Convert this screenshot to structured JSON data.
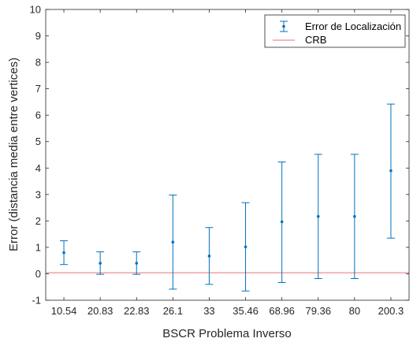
{
  "chart_data": {
    "type": "scatter",
    "title": "",
    "xlabel": "BSCR Problema Inverso",
    "ylabel": "Error (distancia media entre vertices)",
    "categories": [
      "10.54",
      "20.83",
      "22.83",
      "26.1",
      "33",
      "35.46",
      "68.96",
      "79.36",
      "80",
      "200.3"
    ],
    "ylim": [
      -1,
      10
    ],
    "yticks": [
      "-1",
      "0",
      "1",
      "2",
      "3",
      "4",
      "5",
      "6",
      "7",
      "8",
      "9",
      "10"
    ],
    "grid": false,
    "legend_position": "top-right",
    "series": [
      {
        "name": "Error de Localización",
        "style": "errorbar",
        "color": "#0072BD",
        "values": [
          0.8,
          0.4,
          0.4,
          1.2,
          0.67,
          1.02,
          1.97,
          2.17,
          2.17,
          3.9
        ],
        "lower": [
          0.35,
          -0.02,
          -0.02,
          -0.58,
          -0.4,
          -0.65,
          -0.33,
          -0.18,
          -0.18,
          1.35
        ],
        "upper": [
          1.25,
          0.83,
          0.83,
          2.98,
          1.75,
          2.69,
          4.23,
          4.52,
          4.52,
          6.42
        ]
      },
      {
        "name": "CRB",
        "style": "line",
        "color": "#E8707A",
        "value": 0.04
      }
    ]
  }
}
